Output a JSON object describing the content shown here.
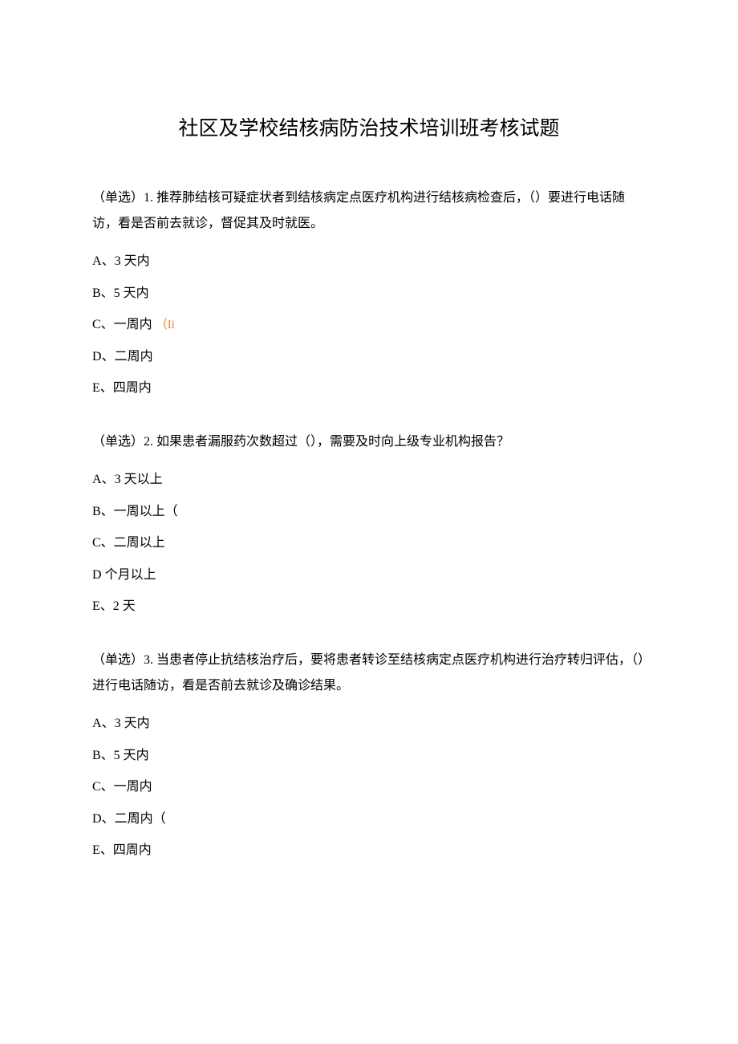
{
  "title": "社区及学校结核病防治技术培训班考核试题",
  "questions": [
    {
      "prefix": "（单选）1. ",
      "text": "推荐肺结核可疑症状者到结核病定点医疗机构进行结核病检查后，（）要进行电话随访，看是否前去就诊，督促其及时就医。",
      "options": [
        {
          "letter": "A",
          "text": "、3 天内",
          "suffix": ""
        },
        {
          "letter": "B",
          "text": "、5 天内",
          "suffix": ""
        },
        {
          "letter": "C",
          "text": "、一周内",
          "suffix": "（Ii"
        },
        {
          "letter": "D",
          "text": "、二周内",
          "suffix": ""
        },
        {
          "letter": "E",
          "text": "、四周内",
          "suffix": ""
        }
      ]
    },
    {
      "prefix": "（单选）2. ",
      "text": "如果患者漏服药次数超过（），需要及时向上级专业机构报告？",
      "options": [
        {
          "letter": "A",
          "text": "、3 天以上",
          "suffix": ""
        },
        {
          "letter": "B",
          "text": "、一周以上（",
          "suffix": ""
        },
        {
          "letter": "C",
          "text": "、二周以上",
          "suffix": ""
        },
        {
          "letter": "D",
          "text": " 个月以上",
          "suffix": ""
        },
        {
          "letter": "E",
          "text": "、2 天",
          "suffix": ""
        }
      ]
    },
    {
      "prefix": "（单选）3. ",
      "text": "当患者停止抗结核治疗后，要将患者转诊至结核病定点医疗机构进行治疗转归评估，（）进行电话随访，看是否前去就诊及确诊结果。",
      "options": [
        {
          "letter": "A",
          "text": "、3 天内",
          "suffix": ""
        },
        {
          "letter": "B",
          "text": "、5 天内",
          "suffix": ""
        },
        {
          "letter": "C",
          "text": "、一周内",
          "suffix": ""
        },
        {
          "letter": "D",
          "text": "、二周内（",
          "suffix": ""
        },
        {
          "letter": "E",
          "text": "、四周内",
          "suffix": ""
        }
      ]
    }
  ],
  "colors": {
    "background": "#ffffff",
    "text": "#000000",
    "annotation": "#ed7d31"
  },
  "typography": {
    "title_fontsize": 25,
    "body_fontsize": 16,
    "line_height": 2.0
  }
}
